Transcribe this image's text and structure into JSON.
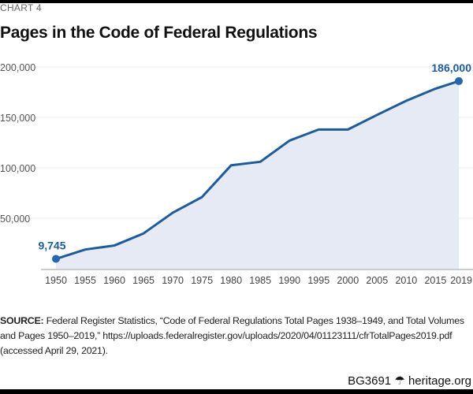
{
  "chart_data": {
    "type": "area",
    "kicker": "CHART 4",
    "title": "Pages in the Code of Federal Regulations",
    "xlabel": "",
    "ylabel": "",
    "x": [
      1950,
      1955,
      1960,
      1965,
      1970,
      1975,
      1980,
      1985,
      1990,
      1995,
      2000,
      2005,
      2010,
      2015,
      2019
    ],
    "values": [
      9745,
      19000,
      23000,
      35000,
      55500,
      71000,
      102500,
      106000,
      127000,
      138000,
      138000,
      152500,
      166500,
      178500,
      186000
    ],
    "x_tick_labels": [
      "1950",
      "1955",
      "1960",
      "1965",
      "1970",
      "1975",
      "1980",
      "1985",
      "1990",
      "1995",
      "2000",
      "2005",
      "2010",
      "2015",
      "2019"
    ],
    "y_ticks": [
      50000,
      100000,
      150000,
      200000
    ],
    "y_tick_labels": [
      "50,000",
      "100,000",
      "150,000",
      "200,000"
    ],
    "ylim": [
      0,
      200000
    ],
    "xlim": [
      1950,
      2019
    ],
    "grid": true,
    "annotations": [
      {
        "x": 1950,
        "y": 9745,
        "label": "9,745"
      },
      {
        "x": 2019,
        "y": 186000,
        "label": "186,000"
      }
    ],
    "colors": {
      "line": "#1f5b9a",
      "fill": "#e6eaf5",
      "marker": "#2566ad",
      "grid": "#ebebeb"
    }
  },
  "source": {
    "label": "SOURCE:",
    "text": "Federal Register Statistics, “Code of Federal Regulations Total Pages 1938–1949, and Total Volumes and Pages 1950–2019,” https://uploads.federalregister.gov/uploads/2020/04/01123111/cfrTotalPages2019.pdf (accessed April 29, 2021)."
  },
  "footer": {
    "code": "BG3691",
    "icon": "liberty-bell-icon",
    "site": "heritage.org"
  }
}
